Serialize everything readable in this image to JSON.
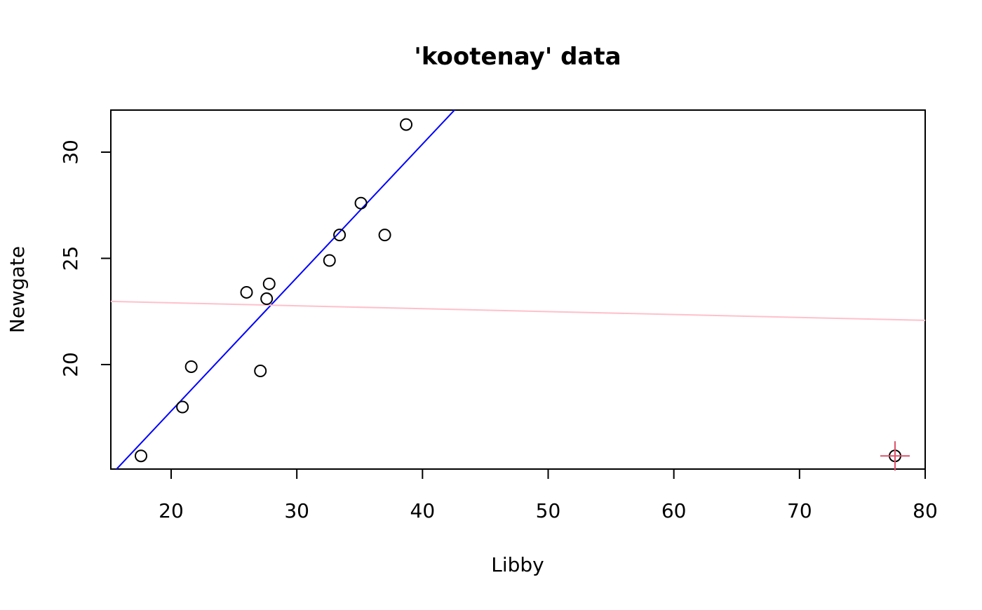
{
  "chart_data": {
    "type": "scatter",
    "title": "'kootenay' data",
    "x_label": "Libby",
    "y_label": "Newgate",
    "series": [
      {
        "color": "#000000",
        "marker": "circle",
        "x": [
          27.1,
          20.9,
          33.4,
          77.6,
          37.0,
          21.6,
          17.6,
          35.1,
          32.6,
          26.0,
          27.6,
          38.7,
          27.8
        ],
        "y": [
          19.7,
          18.0,
          26.1,
          15.7,
          26.1,
          19.9,
          15.7,
          27.6,
          24.9,
          23.4,
          23.1,
          31.3,
          23.8
        ]
      },
      {
        "color": "#df536b",
        "marker": "plus",
        "x": [
          77.6
        ],
        "y": [
          15.7
        ]
      }
    ],
    "lines": [
      {
        "color": "#0000ff",
        "intercept": 5.24,
        "slope": 0.6285
      },
      {
        "color": "#ffc0cb",
        "intercept": 23.18,
        "slope": -0.01374
      }
    ],
    "xlim": [
      15.2,
      80
    ],
    "ylim": [
      15.08,
      31.98
    ],
    "xticks": [
      20,
      30,
      40,
      50,
      60,
      70,
      80
    ],
    "yticks": [
      20,
      25,
      30
    ]
  }
}
